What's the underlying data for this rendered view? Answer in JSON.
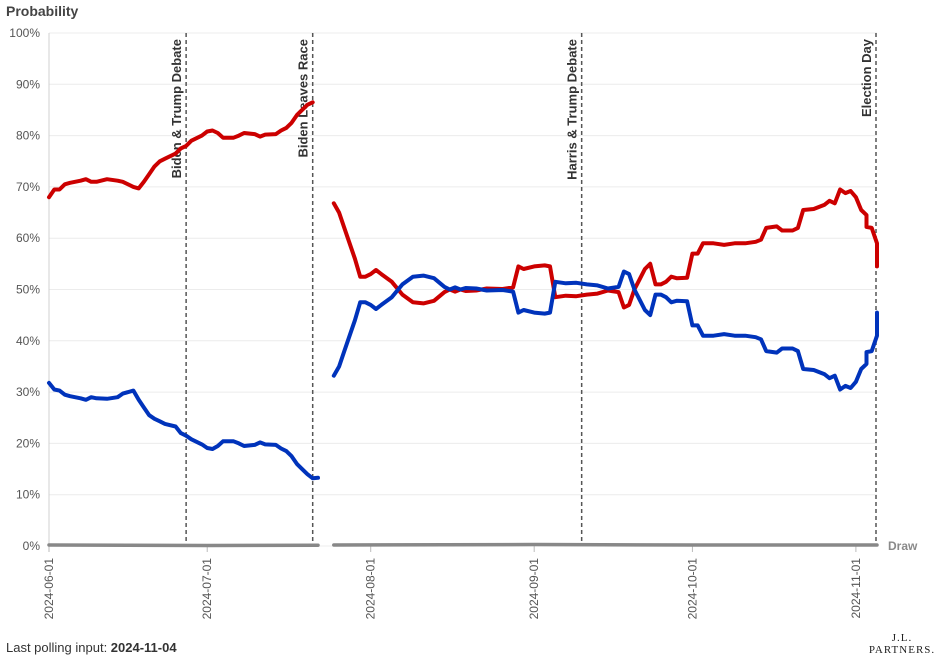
{
  "chart_data": {
    "type": "line",
    "title": "Probability",
    "x_range": [
      "2024-06-01",
      "2024-11-05"
    ],
    "y_range": [
      0,
      100
    ],
    "y_unit": "%",
    "y_ticks": [
      "0%",
      "10%",
      "20%",
      "30%",
      "40%",
      "50%",
      "60%",
      "70%",
      "80%",
      "90%",
      "100%"
    ],
    "x_ticks": [
      "2024-06-01",
      "2024-07-01",
      "2024-08-01",
      "2024-09-01",
      "2024-10-01",
      "2024-11-01"
    ],
    "grid": true,
    "gap": [
      "2024-07-24",
      "2024-07-25"
    ],
    "events": [
      {
        "date": "2024-06-27",
        "label": "Biden & Trump Debate"
      },
      {
        "date": "2024-07-21",
        "label": "Biden Leaves Race"
      },
      {
        "date": "2024-09-10",
        "label": "Harris & Trump Debate"
      },
      {
        "date": "2024-11-05",
        "label": "Election Day"
      }
    ],
    "series": [
      {
        "name": "",
        "color": "#cc0000",
        "points": [
          [
            "2024-06-01",
            68
          ],
          [
            "2024-06-02",
            69.5
          ],
          [
            "2024-06-03",
            69.5
          ],
          [
            "2024-06-04",
            70.5
          ],
          [
            "2024-06-05",
            70.8
          ],
          [
            "2024-06-07",
            71.2
          ],
          [
            "2024-06-08",
            71.5
          ],
          [
            "2024-06-09",
            71
          ],
          [
            "2024-06-10",
            71
          ],
          [
            "2024-06-12",
            71.5
          ],
          [
            "2024-06-14",
            71.2
          ],
          [
            "2024-06-15",
            71
          ],
          [
            "2024-06-17",
            70
          ],
          [
            "2024-06-18",
            69.7
          ],
          [
            "2024-06-19",
            71
          ],
          [
            "2024-06-20",
            72.5
          ],
          [
            "2024-06-21",
            74
          ],
          [
            "2024-06-22",
            75
          ],
          [
            "2024-06-23",
            75.5
          ],
          [
            "2024-06-25",
            76.5
          ],
          [
            "2024-06-26",
            77.5
          ],
          [
            "2024-06-27",
            78
          ],
          [
            "2024-06-28",
            79
          ],
          [
            "2024-06-30",
            80
          ],
          [
            "2024-07-01",
            80.8
          ],
          [
            "2024-07-02",
            81
          ],
          [
            "2024-07-03",
            80.5
          ],
          [
            "2024-07-04",
            79.6
          ],
          [
            "2024-07-06",
            79.6
          ],
          [
            "2024-07-07",
            80
          ],
          [
            "2024-07-08",
            80.5
          ],
          [
            "2024-07-10",
            80.3
          ],
          [
            "2024-07-11",
            79.8
          ],
          [
            "2024-07-12",
            80.2
          ],
          [
            "2024-07-14",
            80.3
          ],
          [
            "2024-07-15",
            81
          ],
          [
            "2024-07-16",
            81.5
          ],
          [
            "2024-07-17",
            82.5
          ],
          [
            "2024-07-18",
            84
          ],
          [
            "2024-07-19",
            85
          ],
          [
            "2024-07-20",
            86
          ],
          [
            "2024-07-21",
            86.5
          ],
          null,
          [
            "2024-07-25",
            66.8
          ],
          [
            "2024-07-26",
            65
          ],
          [
            "2024-07-27",
            62
          ],
          [
            "2024-07-28",
            59
          ],
          [
            "2024-07-29",
            56
          ],
          [
            "2024-07-30",
            52.5
          ],
          [
            "2024-07-31",
            52.5
          ],
          [
            "2024-08-01",
            53
          ],
          [
            "2024-08-02",
            53.8
          ],
          [
            "2024-08-03",
            53
          ],
          [
            "2024-08-05",
            51.5
          ],
          [
            "2024-08-07",
            49
          ],
          [
            "2024-08-09",
            47.5
          ],
          [
            "2024-08-11",
            47.3
          ],
          [
            "2024-08-13",
            47.8
          ],
          [
            "2024-08-15",
            49.5
          ],
          [
            "2024-08-16",
            50
          ],
          [
            "2024-08-17",
            49.6
          ],
          [
            "2024-08-18",
            50
          ],
          [
            "2024-08-19",
            49.7
          ],
          [
            "2024-08-21",
            49.8
          ],
          [
            "2024-08-23",
            50.2
          ],
          [
            "2024-08-26",
            50.1
          ],
          [
            "2024-08-28",
            50.4
          ],
          [
            "2024-08-29",
            54.5
          ],
          [
            "2024-08-30",
            54
          ],
          [
            "2024-09-01",
            54.5
          ],
          [
            "2024-09-03",
            54.7
          ],
          [
            "2024-09-04",
            54.5
          ],
          [
            "2024-09-05",
            48.5
          ],
          [
            "2024-09-07",
            48.8
          ],
          [
            "2024-09-09",
            48.7
          ],
          [
            "2024-09-11",
            49
          ],
          [
            "2024-09-13",
            49.2
          ],
          [
            "2024-09-15",
            49.8
          ],
          [
            "2024-09-17",
            49.5
          ],
          [
            "2024-09-18",
            46.5
          ],
          [
            "2024-09-19",
            47
          ],
          [
            "2024-09-20",
            50
          ],
          [
            "2024-09-21",
            52
          ],
          [
            "2024-09-22",
            54
          ],
          [
            "2024-09-23",
            55
          ],
          [
            "2024-09-24",
            51
          ],
          [
            "2024-09-25",
            51
          ],
          [
            "2024-09-26",
            51.5
          ],
          [
            "2024-09-27",
            52.5
          ],
          [
            "2024-09-28",
            52.2
          ],
          [
            "2024-09-30",
            52.3
          ],
          [
            "2024-10-01",
            57
          ],
          [
            "2024-10-02",
            57
          ],
          [
            "2024-10-03",
            59
          ],
          [
            "2024-10-05",
            59
          ],
          [
            "2024-10-07",
            58.7
          ],
          [
            "2024-10-09",
            59
          ],
          [
            "2024-10-11",
            59
          ],
          [
            "2024-10-13",
            59.3
          ],
          [
            "2024-10-14",
            59.7
          ],
          [
            "2024-10-15",
            62
          ],
          [
            "2024-10-17",
            62.3
          ],
          [
            "2024-10-18",
            61.5
          ],
          [
            "2024-10-20",
            61.5
          ],
          [
            "2024-10-21",
            62
          ],
          [
            "2024-10-22",
            65.5
          ],
          [
            "2024-10-24",
            65.7
          ],
          [
            "2024-10-26",
            66.5
          ],
          [
            "2024-10-27",
            67.3
          ],
          [
            "2024-10-28",
            66.8
          ],
          [
            "2024-10-29",
            69.5
          ],
          [
            "2024-10-30",
            68.8
          ],
          [
            "2024-10-31",
            69.2
          ],
          [
            "2024-11-01",
            68
          ],
          [
            "2024-11-02",
            65.5
          ],
          [
            "2024-11-03",
            64.5
          ],
          [
            "2024-11-03",
            62.2
          ],
          [
            "2024-11-04",
            62
          ],
          [
            "2024-11-05",
            59
          ],
          [
            "2024-11-05",
            54.5
          ]
        ]
      },
      {
        "name": "",
        "color": "#0033bb",
        "points": [
          [
            "2024-06-01",
            31.8
          ],
          [
            "2024-06-02",
            30.5
          ],
          [
            "2024-06-03",
            30.3
          ],
          [
            "2024-06-04",
            29.5
          ],
          [
            "2024-06-05",
            29.2
          ],
          [
            "2024-06-07",
            28.8
          ],
          [
            "2024-06-08",
            28.5
          ],
          [
            "2024-06-09",
            29
          ],
          [
            "2024-06-10",
            28.8
          ],
          [
            "2024-06-12",
            28.7
          ],
          [
            "2024-06-14",
            29
          ],
          [
            "2024-06-15",
            29.7
          ],
          [
            "2024-06-17",
            30.3
          ],
          [
            "2024-06-18",
            28.5
          ],
          [
            "2024-06-19",
            27
          ],
          [
            "2024-06-20",
            25.5
          ],
          [
            "2024-06-21",
            24.8
          ],
          [
            "2024-06-22",
            24.3
          ],
          [
            "2024-06-23",
            23.8
          ],
          [
            "2024-06-25",
            23.3
          ],
          [
            "2024-06-26",
            22
          ],
          [
            "2024-06-27",
            21.5
          ],
          [
            "2024-06-28",
            20.8
          ],
          [
            "2024-06-30",
            19.8
          ],
          [
            "2024-07-01",
            19.1
          ],
          [
            "2024-07-02",
            18.9
          ],
          [
            "2024-07-03",
            19.5
          ],
          [
            "2024-07-04",
            20.4
          ],
          [
            "2024-07-06",
            20.4
          ],
          [
            "2024-07-07",
            20
          ],
          [
            "2024-07-08",
            19.5
          ],
          [
            "2024-07-10",
            19.7
          ],
          [
            "2024-07-11",
            20.2
          ],
          [
            "2024-07-12",
            19.8
          ],
          [
            "2024-07-14",
            19.7
          ],
          [
            "2024-07-15",
            19
          ],
          [
            "2024-07-16",
            18.5
          ],
          [
            "2024-07-17",
            17.5
          ],
          [
            "2024-07-18",
            16
          ],
          [
            "2024-07-19",
            15
          ],
          [
            "2024-07-20",
            14
          ],
          [
            "2024-07-21",
            13.2
          ],
          [
            "2024-07-22",
            13.3
          ],
          null,
          [
            "2024-07-25",
            33.2
          ],
          [
            "2024-07-26",
            35
          ],
          [
            "2024-07-27",
            38
          ],
          [
            "2024-07-28",
            41
          ],
          [
            "2024-07-29",
            44
          ],
          [
            "2024-07-30",
            47.5
          ],
          [
            "2024-07-31",
            47.5
          ],
          [
            "2024-08-01",
            47
          ],
          [
            "2024-08-02",
            46.2
          ],
          [
            "2024-08-03",
            47
          ],
          [
            "2024-08-05",
            48.5
          ],
          [
            "2024-08-07",
            51
          ],
          [
            "2024-08-09",
            52.5
          ],
          [
            "2024-08-11",
            52.7
          ],
          [
            "2024-08-13",
            52.2
          ],
          [
            "2024-08-15",
            50.5
          ],
          [
            "2024-08-16",
            50
          ],
          [
            "2024-08-17",
            50.4
          ],
          [
            "2024-08-18",
            50
          ],
          [
            "2024-08-19",
            50.3
          ],
          [
            "2024-08-21",
            50.2
          ],
          [
            "2024-08-23",
            49.8
          ],
          [
            "2024-08-26",
            49.9
          ],
          [
            "2024-08-28",
            49.6
          ],
          [
            "2024-08-29",
            45.5
          ],
          [
            "2024-08-30",
            46
          ],
          [
            "2024-09-01",
            45.5
          ],
          [
            "2024-09-03",
            45.3
          ],
          [
            "2024-09-04",
            45.5
          ],
          [
            "2024-09-05",
            51.5
          ],
          [
            "2024-09-07",
            51.2
          ],
          [
            "2024-09-09",
            51.3
          ],
          [
            "2024-09-11",
            51
          ],
          [
            "2024-09-13",
            50.8
          ],
          [
            "2024-09-15",
            50.2
          ],
          [
            "2024-09-17",
            50.5
          ],
          [
            "2024-09-18",
            53.5
          ],
          [
            "2024-09-19",
            53
          ],
          [
            "2024-09-20",
            50
          ],
          [
            "2024-09-21",
            48
          ],
          [
            "2024-09-22",
            46
          ],
          [
            "2024-09-23",
            45
          ],
          [
            "2024-09-24",
            49
          ],
          [
            "2024-09-25",
            49
          ],
          [
            "2024-09-26",
            48.5
          ],
          [
            "2024-09-27",
            47.5
          ],
          [
            "2024-09-28",
            47.8
          ],
          [
            "2024-09-30",
            47.7
          ],
          [
            "2024-10-01",
            43
          ],
          [
            "2024-10-02",
            43
          ],
          [
            "2024-10-03",
            41
          ],
          [
            "2024-10-05",
            41
          ],
          [
            "2024-10-07",
            41.3
          ],
          [
            "2024-10-09",
            41
          ],
          [
            "2024-10-11",
            41
          ],
          [
            "2024-10-13",
            40.7
          ],
          [
            "2024-10-14",
            40.3
          ],
          [
            "2024-10-15",
            38
          ],
          [
            "2024-10-17",
            37.7
          ],
          [
            "2024-10-18",
            38.5
          ],
          [
            "2024-10-20",
            38.5
          ],
          [
            "2024-10-21",
            38
          ],
          [
            "2024-10-22",
            34.5
          ],
          [
            "2024-10-24",
            34.3
          ],
          [
            "2024-10-26",
            33.5
          ],
          [
            "2024-10-27",
            32.7
          ],
          [
            "2024-10-28",
            33.2
          ],
          [
            "2024-10-29",
            30.5
          ],
          [
            "2024-10-30",
            31.2
          ],
          [
            "2024-10-31",
            30.8
          ],
          [
            "2024-11-01",
            32
          ],
          [
            "2024-11-02",
            34.5
          ],
          [
            "2024-11-03",
            35.5
          ],
          [
            "2024-11-03",
            37.8
          ],
          [
            "2024-11-04",
            38
          ],
          [
            "2024-11-05",
            41
          ],
          [
            "2024-11-05",
            45.5
          ]
        ]
      },
      {
        "name": "Draw",
        "color": "#888888",
        "points": [
          [
            "2024-06-01",
            0.2
          ],
          [
            "2024-07-01",
            0.1
          ],
          [
            "2024-07-22",
            0.15
          ],
          null,
          [
            "2024-07-25",
            0.2
          ],
          [
            "2024-09-01",
            0.3
          ],
          [
            "2024-10-01",
            0.2
          ],
          [
            "2024-11-05",
            0.2
          ]
        ]
      }
    ]
  },
  "footer": {
    "label": "Last polling input: ",
    "date": "2024-11-04"
  },
  "logo": {
    "line1": "J.L.",
    "line2": "PARTNERS."
  }
}
